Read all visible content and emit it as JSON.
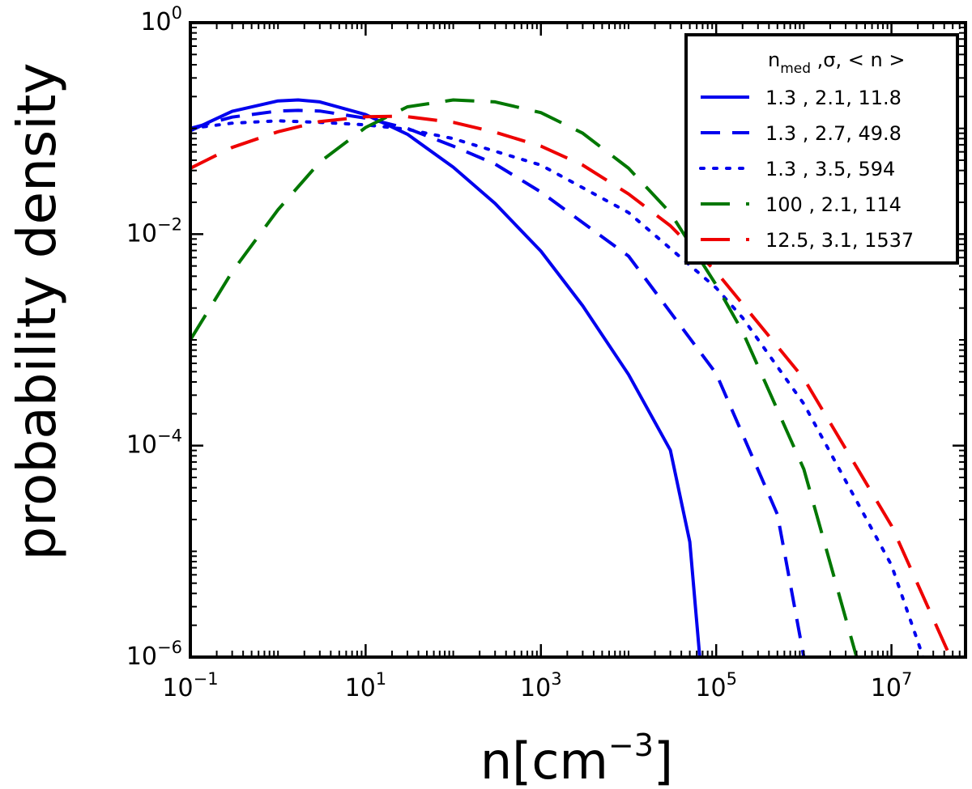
{
  "chart_data": {
    "type": "line",
    "title": "",
    "xlabel": "n[cm",
    "xlabel_sup": "−3",
    "xlabel_end": "]",
    "ylabel": "probability density",
    "x_scale": "log",
    "y_scale": "log",
    "xlim": [
      0.1,
      70000000
    ],
    "ylim": [
      1e-06,
      1
    ],
    "grid": false,
    "legend_placement": "top-right",
    "x_ticks": [
      {
        "value": 0.1,
        "base": "10",
        "exp": "−1"
      },
      {
        "value": 10,
        "base": "10",
        "exp": "1"
      },
      {
        "value": 1000,
        "base": "10",
        "exp": "3"
      },
      {
        "value": 100000,
        "base": "10",
        "exp": "5"
      },
      {
        "value": 10000000,
        "base": "10",
        "exp": "7"
      }
    ],
    "y_ticks": [
      {
        "value": 1,
        "base": "10",
        "exp": "0"
      },
      {
        "value": 0.01,
        "base": "10",
        "exp": "−2"
      },
      {
        "value": 0.0001,
        "base": "10",
        "exp": "−4"
      },
      {
        "value": 1e-06,
        "base": "10",
        "exp": "−6"
      }
    ],
    "legend_header": {
      "base": "n",
      "sub": "med",
      "rest": " ,σ,  < n >"
    },
    "series": [
      {
        "name": "1.3 , 2.1, 11.8",
        "color": "#0000ee",
        "dash": "solid",
        "x": [
          0.1,
          0.3,
          1,
          1.7,
          3,
          10,
          30,
          100,
          300,
          1000,
          3000,
          10000,
          30000,
          50000,
          65000
        ],
        "y": [
          0.095,
          0.145,
          0.182,
          0.186,
          0.178,
          0.135,
          0.088,
          0.043,
          0.0195,
          0.0069,
          0.0021,
          0.00047,
          9.06e-05,
          1.23e-05,
          1e-06
        ]
      },
      {
        "name": "1.3 , 2.7, 49.8",
        "color": "#0000ee",
        "dash": "dash",
        "x": [
          0.1,
          0.3,
          1,
          1.7,
          3,
          10,
          30,
          100,
          300,
          1000,
          10000,
          100000,
          500000,
          1000000
        ],
        "y": [
          0.1,
          0.128,
          0.146,
          0.148,
          0.146,
          0.125,
          0.1,
          0.068,
          0.046,
          0.025,
          0.0062,
          0.00048,
          2.23e-05,
          1e-06
        ]
      },
      {
        "name": "1.3 , 3.5, 594",
        "color": "#0000ee",
        "dash": "dot",
        "x": [
          0.1,
          0.3,
          1,
          3,
          10,
          30,
          100,
          1000,
          10000,
          100000,
          200000,
          1000000,
          10000000,
          23000000
        ],
        "y": [
          0.1,
          0.112,
          0.118,
          0.114,
          0.108,
          0.098,
          0.08,
          0.045,
          0.016,
          0.0031,
          0.00162,
          0.000248,
          7.4e-06,
          1e-06
        ]
      },
      {
        "name": "100 , 2.1, 114",
        "color": "#007700",
        "dash": "longdash",
        "x": [
          0.1,
          0.3,
          1,
          3,
          10,
          30,
          100,
          300,
          1000,
          3000,
          10000,
          30000,
          100000,
          200000,
          1000000,
          4000000
        ],
        "y": [
          0.001,
          0.0044,
          0.017,
          0.048,
          0.102,
          0.16,
          0.186,
          0.178,
          0.141,
          0.09,
          0.042,
          0.0159,
          0.0033,
          0.0012,
          5.98e-05,
          1e-06
        ]
      },
      {
        "name": "12.5, 3.1, 1537",
        "color": "#ee0000",
        "dash": "longdash",
        "x": [
          0.1,
          0.3,
          1,
          3,
          10,
          20,
          30,
          100,
          300,
          1000,
          3000,
          10000,
          30000,
          100000,
          1000000,
          10000000,
          47000000
        ],
        "y": [
          0.042,
          0.066,
          0.093,
          0.116,
          0.129,
          0.13,
          0.129,
          0.114,
          0.092,
          0.068,
          0.045,
          0.024,
          0.012,
          0.0044,
          0.00043,
          1.75e-05,
          1e-06
        ]
      }
    ]
  }
}
